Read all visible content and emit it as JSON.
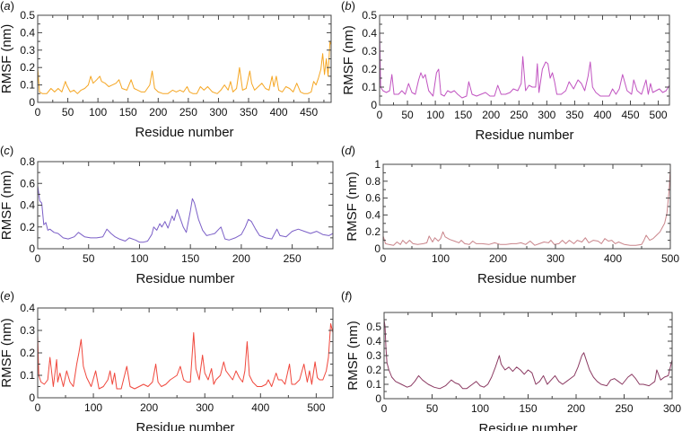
{
  "figure": {
    "panels": [
      {
        "id": "a",
        "label_open": "(",
        "label_letter": "a",
        "label_close": ")"
      },
      {
        "id": "b",
        "label_open": "(",
        "label_letter": "b",
        "label_close": ")"
      },
      {
        "id": "c",
        "label_open": "(",
        "label_letter": "c",
        "label_close": ")"
      },
      {
        "id": "d",
        "label_open": "(",
        "label_letter": "d",
        "label_close": ")"
      },
      {
        "id": "e",
        "label_open": "(",
        "label_letter": "e",
        "label_close": ")"
      },
      {
        "id": "f",
        "label_open": "(",
        "label_letter": "f",
        "label_close": ")"
      }
    ]
  },
  "chart_data": [
    {
      "id": "a",
      "type": "line",
      "title": "",
      "color": "#f5a623",
      "xlabel": "Residue number",
      "ylabel": "RMSF (nm)",
      "xlim": [
        0,
        487
      ],
      "ylim": [
        0,
        0.5
      ],
      "xticks": [
        0,
        50,
        100,
        150,
        200,
        250,
        300,
        350,
        400,
        450
      ],
      "yticks": [
        0,
        0.1,
        0.2,
        0.3,
        0.4,
        0.5
      ],
      "ytick_labels": [
        "0",
        "0.1",
        "0.2",
        "0.3",
        "0.4",
        "0.5"
      ],
      "grid": false,
      "x": [
        0,
        3,
        8,
        15,
        22,
        28,
        34,
        40,
        46,
        48,
        54,
        60,
        66,
        72,
        78,
        84,
        88,
        92,
        98,
        103,
        106,
        112,
        118,
        124,
        130,
        135,
        140,
        148,
        155,
        160,
        166,
        172,
        178,
        186,
        190,
        194,
        200,
        208,
        216,
        224,
        230,
        236,
        242,
        248,
        252,
        258,
        264,
        270,
        276,
        282,
        290,
        298,
        304,
        310,
        316,
        320,
        324,
        330,
        335,
        340,
        346,
        352,
        355,
        360,
        366,
        372,
        378,
        384,
        389,
        392,
        396,
        400,
        406,
        412,
        418,
        424,
        430,
        436,
        442,
        448,
        454,
        458,
        462,
        466,
        470,
        473,
        476,
        479,
        482,
        485,
        487
      ],
      "y": [
        0.2,
        0.06,
        0.05,
        0.05,
        0.08,
        0.06,
        0.08,
        0.06,
        0.12,
        0.1,
        0.06,
        0.07,
        0.05,
        0.07,
        0.08,
        0.1,
        0.15,
        0.11,
        0.13,
        0.15,
        0.12,
        0.11,
        0.09,
        0.1,
        0.11,
        0.13,
        0.08,
        0.07,
        0.13,
        0.08,
        0.07,
        0.06,
        0.06,
        0.1,
        0.18,
        0.08,
        0.06,
        0.05,
        0.05,
        0.07,
        0.06,
        0.07,
        0.06,
        0.09,
        0.06,
        0.05,
        0.05,
        0.09,
        0.07,
        0.09,
        0.06,
        0.05,
        0.07,
        0.1,
        0.07,
        0.12,
        0.06,
        0.08,
        0.2,
        0.07,
        0.08,
        0.18,
        0.11,
        0.07,
        0.09,
        0.11,
        0.08,
        0.07,
        0.15,
        0.09,
        0.15,
        0.07,
        0.06,
        0.09,
        0.08,
        0.06,
        0.11,
        0.06,
        0.05,
        0.05,
        0.06,
        0.12,
        0.1,
        0.14,
        0.19,
        0.28,
        0.16,
        0.25,
        0.15,
        0.35,
        0.33
      ]
    },
    {
      "id": "b",
      "type": "line",
      "title": "",
      "color": "#c154c1",
      "xlabel": "Residue number",
      "ylabel": "RMSF (nm)",
      "xlim": [
        0,
        520
      ],
      "ylim": [
        0,
        0.5
      ],
      "xticks": [
        0,
        50,
        100,
        150,
        200,
        250,
        300,
        350,
        400,
        450,
        500
      ],
      "yticks": [
        0,
        0.1,
        0.2,
        0.3,
        0.4,
        0.5
      ],
      "ytick_labels": [
        "0",
        "0.1",
        "0.2",
        "0.3",
        "0.4",
        "0.5"
      ],
      "grid": false,
      "x": [
        0,
        2,
        6,
        12,
        18,
        22,
        26,
        34,
        40,
        46,
        52,
        58,
        64,
        70,
        74,
        78,
        82,
        88,
        96,
        102,
        106,
        110,
        116,
        122,
        128,
        134,
        140,
        148,
        156,
        160,
        166,
        174,
        182,
        190,
        198,
        206,
        212,
        218,
        226,
        234,
        240,
        248,
        254,
        257,
        262,
        268,
        274,
        280,
        283,
        286,
        292,
        298,
        302,
        306,
        310,
        314,
        318,
        326,
        334,
        340,
        348,
        356,
        362,
        368,
        374,
        378,
        382,
        388,
        396,
        404,
        412,
        418,
        424,
        430,
        436,
        444,
        452,
        456,
        462,
        470,
        478,
        482,
        486,
        490,
        496,
        502,
        508,
        514,
        520
      ],
      "y": [
        0.42,
        0.1,
        0.08,
        0.07,
        0.08,
        0.17,
        0.06,
        0.06,
        0.08,
        0.06,
        0.12,
        0.07,
        0.06,
        0.14,
        0.18,
        0.15,
        0.17,
        0.08,
        0.05,
        0.18,
        0.2,
        0.06,
        0.05,
        0.08,
        0.07,
        0.08,
        0.06,
        0.04,
        0.05,
        0.13,
        0.06,
        0.05,
        0.06,
        0.07,
        0.05,
        0.05,
        0.11,
        0.06,
        0.06,
        0.07,
        0.09,
        0.08,
        0.12,
        0.27,
        0.08,
        0.11,
        0.1,
        0.1,
        0.23,
        0.07,
        0.2,
        0.24,
        0.23,
        0.15,
        0.18,
        0.13,
        0.06,
        0.06,
        0.08,
        0.13,
        0.09,
        0.14,
        0.12,
        0.08,
        0.16,
        0.24,
        0.1,
        0.07,
        0.05,
        0.05,
        0.05,
        0.09,
        0.06,
        0.09,
        0.17,
        0.08,
        0.06,
        0.14,
        0.08,
        0.06,
        0.14,
        0.06,
        0.12,
        0.07,
        0.08,
        0.09,
        0.07,
        0.08,
        0.11
      ]
    },
    {
      "id": "c",
      "type": "line",
      "title": "",
      "color": "#7b5fc7",
      "xlabel": "Residue number",
      "ylabel": "RMSF (nm)",
      "xlim": [
        0,
        290
      ],
      "ylim": [
        0,
        0.8
      ],
      "xticks": [
        0,
        50,
        100,
        150,
        200,
        250
      ],
      "yticks": [
        0,
        0.2,
        0.4,
        0.6,
        0.8
      ],
      "ytick_labels": [
        "0",
        "0.2",
        "0.4",
        "0.6",
        "0.8"
      ],
      "grid": false,
      "x": [
        0,
        2,
        4,
        6,
        8,
        10,
        12,
        16,
        20,
        25,
        30,
        36,
        40,
        46,
        52,
        58,
        64,
        68,
        72,
        76,
        80,
        86,
        90,
        96,
        100,
        104,
        108,
        112,
        114,
        117,
        120,
        122,
        125,
        128,
        132,
        134,
        137,
        140,
        143,
        146,
        150,
        152,
        154,
        158,
        162,
        166,
        170,
        174,
        178,
        180,
        184,
        188,
        194,
        200,
        204,
        207,
        210,
        214,
        218,
        224,
        230,
        235,
        238,
        244,
        250,
        256,
        262,
        268,
        274,
        280,
        286,
        290
      ],
      "y": [
        0.58,
        0.44,
        0.42,
        0.22,
        0.24,
        0.17,
        0.18,
        0.15,
        0.14,
        0.1,
        0.09,
        0.11,
        0.15,
        0.11,
        0.1,
        0.1,
        0.11,
        0.18,
        0.14,
        0.11,
        0.09,
        0.07,
        0.1,
        0.08,
        0.06,
        0.06,
        0.07,
        0.13,
        0.2,
        0.17,
        0.23,
        0.2,
        0.25,
        0.19,
        0.3,
        0.26,
        0.36,
        0.28,
        0.2,
        0.15,
        0.35,
        0.46,
        0.42,
        0.27,
        0.17,
        0.12,
        0.13,
        0.14,
        0.18,
        0.2,
        0.09,
        0.08,
        0.1,
        0.13,
        0.2,
        0.27,
        0.25,
        0.18,
        0.12,
        0.1,
        0.09,
        0.18,
        0.12,
        0.11,
        0.16,
        0.18,
        0.16,
        0.14,
        0.16,
        0.13,
        0.12,
        0.14
      ]
    },
    {
      "id": "d",
      "type": "line",
      "title": "",
      "color": "#c9848a",
      "xlabel": "Residue number",
      "ylabel": "RMSF (nm)",
      "xlim": [
        0,
        500
      ],
      "ylim": [
        0,
        1
      ],
      "xticks": [
        0,
        100,
        200,
        300,
        400,
        500
      ],
      "yticks": [
        0,
        0.2,
        0.4,
        0.6,
        0.8,
        1
      ],
      "ytick_labels": [
        "0",
        "0.2",
        "0.4",
        "0.6",
        "0.8",
        "1"
      ],
      "grid": false,
      "x": [
        0,
        4,
        10,
        18,
        24,
        30,
        34,
        40,
        46,
        52,
        60,
        70,
        76,
        80,
        86,
        90,
        96,
        100,
        104,
        108,
        116,
        124,
        132,
        136,
        142,
        150,
        156,
        162,
        172,
        184,
        194,
        204,
        214,
        224,
        232,
        240,
        248,
        256,
        264,
        272,
        280,
        288,
        292,
        298,
        306,
        312,
        318,
        324,
        332,
        338,
        346,
        352,
        358,
        366,
        374,
        380,
        386,
        392,
        398,
        404,
        410,
        420,
        430,
        440,
        450,
        454,
        458,
        464,
        470,
        476,
        482,
        486,
        490,
        494,
        498,
        500
      ],
      "y": [
        0.15,
        0.06,
        0.05,
        0.04,
        0.08,
        0.05,
        0.1,
        0.06,
        0.1,
        0.06,
        0.05,
        0.06,
        0.07,
        0.15,
        0.08,
        0.13,
        0.09,
        0.12,
        0.2,
        0.14,
        0.11,
        0.09,
        0.07,
        0.1,
        0.06,
        0.05,
        0.09,
        0.06,
        0.06,
        0.05,
        0.07,
        0.05,
        0.05,
        0.06,
        0.06,
        0.07,
        0.05,
        0.09,
        0.04,
        0.06,
        0.08,
        0.07,
        0.1,
        0.05,
        0.06,
        0.1,
        0.06,
        0.1,
        0.06,
        0.1,
        0.08,
        0.13,
        0.07,
        0.1,
        0.09,
        0.06,
        0.12,
        0.09,
        0.1,
        0.06,
        0.08,
        0.05,
        0.04,
        0.04,
        0.05,
        0.1,
        0.16,
        0.1,
        0.12,
        0.16,
        0.2,
        0.25,
        0.3,
        0.42,
        0.7,
        0.95
      ]
    },
    {
      "id": "e",
      "type": "line",
      "title": "",
      "color": "#f0473c",
      "xlabel": "Residue number",
      "ylabel": "RMSF (nm)",
      "xlim": [
        0,
        530
      ],
      "ylim": [
        0,
        0.4
      ],
      "xticks": [
        0,
        100,
        200,
        300,
        400,
        500
      ],
      "yticks": [
        0,
        0.1,
        0.2,
        0.3,
        0.4
      ],
      "ytick_labels": [
        "0",
        "0.1",
        "0.2",
        "0.3",
        "0.4"
      ],
      "grid": false,
      "x": [
        0,
        2,
        6,
        12,
        18,
        22,
        28,
        34,
        36,
        40,
        46,
        52,
        58,
        64,
        70,
        74,
        78,
        82,
        88,
        96,
        104,
        110,
        118,
        126,
        130,
        134,
        138,
        142,
        150,
        160,
        166,
        174,
        182,
        190,
        198,
        206,
        212,
        216,
        222,
        230,
        238,
        244,
        250,
        256,
        262,
        268,
        274,
        280,
        284,
        290,
        296,
        300,
        306,
        312,
        316,
        320,
        328,
        334,
        338,
        344,
        350,
        356,
        362,
        368,
        372,
        376,
        380,
        386,
        394,
        402,
        410,
        414,
        420,
        428,
        432,
        438,
        444,
        452,
        456,
        462,
        470,
        478,
        484,
        488,
        492,
        498,
        502,
        506,
        512,
        518,
        522,
        526,
        530
      ],
      "y": [
        0.28,
        0.1,
        0.07,
        0.06,
        0.08,
        0.18,
        0.05,
        0.17,
        0.07,
        0.11,
        0.05,
        0.12,
        0.07,
        0.05,
        0.15,
        0.2,
        0.26,
        0.14,
        0.09,
        0.05,
        0.12,
        0.04,
        0.05,
        0.08,
        0.12,
        0.06,
        0.11,
        0.04,
        0.04,
        0.14,
        0.05,
        0.04,
        0.05,
        0.06,
        0.05,
        0.07,
        0.15,
        0.07,
        0.05,
        0.06,
        0.08,
        0.09,
        0.1,
        0.14,
        0.08,
        0.07,
        0.07,
        0.29,
        0.13,
        0.08,
        0.19,
        0.11,
        0.08,
        0.13,
        0.06,
        0.08,
        0.1,
        0.16,
        0.12,
        0.1,
        0.08,
        0.12,
        0.09,
        0.07,
        0.12,
        0.25,
        0.1,
        0.07,
        0.05,
        0.05,
        0.06,
        0.08,
        0.05,
        0.11,
        0.08,
        0.08,
        0.06,
        0.15,
        0.06,
        0.06,
        0.08,
        0.15,
        0.07,
        0.12,
        0.06,
        0.16,
        0.09,
        0.08,
        0.08,
        0.12,
        0.18,
        0.33,
        0.29
      ]
    },
    {
      "id": "f",
      "type": "line",
      "title": "",
      "color": "#8b3a62",
      "xlabel": "Residue number",
      "ylabel": "RMSF (nm)",
      "xlim": [
        0,
        300
      ],
      "ylim": [
        0,
        0.6
      ],
      "xticks": [
        0,
        50,
        100,
        150,
        200,
        250,
        300
      ],
      "yticks": [
        0,
        0.1,
        0.2,
        0.3,
        0.4,
        0.5
      ],
      "ytick_labels": [
        "0",
        "0.1",
        "0.2",
        "0.3",
        "0.4",
        "0.5"
      ],
      "grid": false,
      "x": [
        0,
        1,
        2,
        3,
        5,
        8,
        12,
        18,
        24,
        28,
        32,
        36,
        40,
        46,
        52,
        58,
        64,
        70,
        74,
        78,
        82,
        86,
        92,
        96,
        100,
        104,
        108,
        112,
        116,
        120,
        122,
        126,
        130,
        134,
        138,
        142,
        146,
        150,
        154,
        158,
        162,
        166,
        170,
        174,
        178,
        182,
        186,
        190,
        194,
        198,
        202,
        206,
        208,
        210,
        214,
        218,
        222,
        226,
        232,
        236,
        240,
        244,
        248,
        254,
        258,
        262,
        266,
        270,
        276,
        278,
        282,
        284,
        288,
        292,
        296,
        300
      ],
      "y": [
        0.55,
        0.5,
        0.35,
        0.25,
        0.2,
        0.15,
        0.12,
        0.1,
        0.08,
        0.09,
        0.12,
        0.16,
        0.13,
        0.1,
        0.08,
        0.07,
        0.09,
        0.13,
        0.11,
        0.1,
        0.07,
        0.07,
        0.1,
        0.12,
        0.09,
        0.08,
        0.1,
        0.15,
        0.22,
        0.3,
        0.24,
        0.2,
        0.22,
        0.19,
        0.22,
        0.2,
        0.17,
        0.2,
        0.18,
        0.1,
        0.12,
        0.16,
        0.1,
        0.13,
        0.16,
        0.12,
        0.1,
        0.12,
        0.14,
        0.16,
        0.22,
        0.3,
        0.32,
        0.28,
        0.2,
        0.15,
        0.12,
        0.1,
        0.09,
        0.13,
        0.14,
        0.12,
        0.1,
        0.15,
        0.17,
        0.14,
        0.1,
        0.1,
        0.09,
        0.1,
        0.12,
        0.2,
        0.13,
        0.15,
        0.16,
        0.27
      ]
    }
  ]
}
